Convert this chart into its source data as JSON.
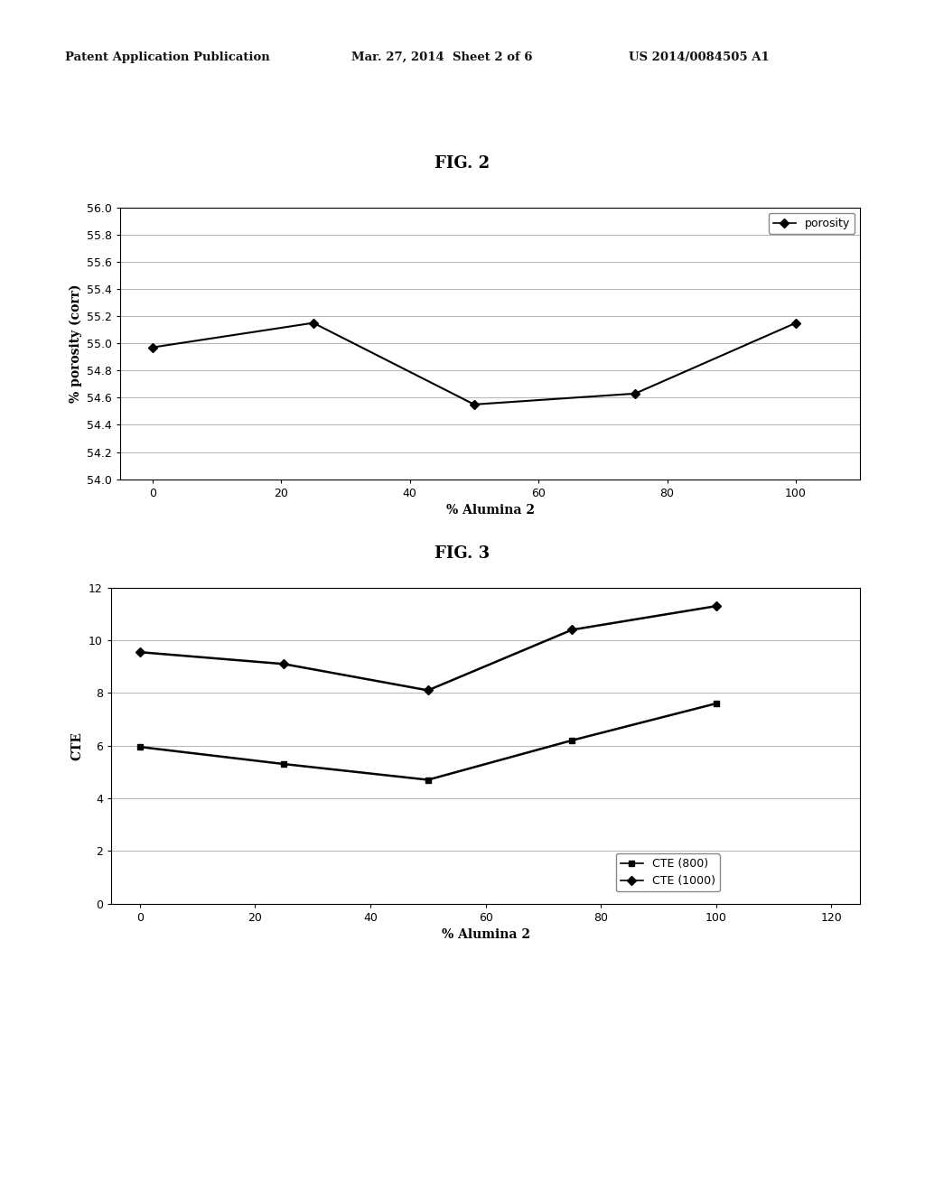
{
  "header_left": "Patent Application Publication",
  "header_mid": "Mar. 27, 2014  Sheet 2 of 6",
  "header_right": "US 2014/0084505 A1",
  "fig2_title": "FIG. 2",
  "fig3_title": "FIG. 3",
  "fig2": {
    "x": [
      0,
      25,
      50,
      75,
      100
    ],
    "y_porosity": [
      54.97,
      55.15,
      54.55,
      54.63,
      55.15
    ],
    "xlabel": "% Alumina 2",
    "ylabel": "% porosity (corr)",
    "ylim": [
      54.0,
      56.0
    ],
    "yticks": [
      54.0,
      54.2,
      54.4,
      54.6,
      54.8,
      55.0,
      55.2,
      55.4,
      55.6,
      55.8,
      56.0
    ],
    "xticks": [
      0,
      20,
      40,
      60,
      80,
      100
    ],
    "xlim": [
      -5,
      110
    ],
    "legend_label": "porosity"
  },
  "fig3": {
    "x": [
      0,
      25,
      50,
      75,
      100
    ],
    "y_cte800": [
      5.95,
      5.3,
      4.7,
      6.2,
      7.6
    ],
    "y_cte1000": [
      9.55,
      9.1,
      8.1,
      10.4,
      11.3
    ],
    "xlabel": "% Alumina 2",
    "ylabel": "CTE",
    "ylim": [
      0.0,
      12.0
    ],
    "yticks": [
      0.0,
      2.0,
      4.0,
      6.0,
      8.0,
      10.0,
      12.0
    ],
    "xticks": [
      0,
      20,
      40,
      60,
      80,
      100,
      120
    ],
    "xlim": [
      -5,
      125
    ],
    "legend_cte800": "CTE (800)",
    "legend_cte1000": "CTE (1000)"
  },
  "bg_color": "#ffffff",
  "line_color": "#000000",
  "marker_diamond": "D",
  "marker_square": "s",
  "marker_size": 5,
  "header_fontsize": 9.5,
  "fig_label_fontsize": 13,
  "axis_fontsize": 9,
  "legend_fontsize": 9
}
